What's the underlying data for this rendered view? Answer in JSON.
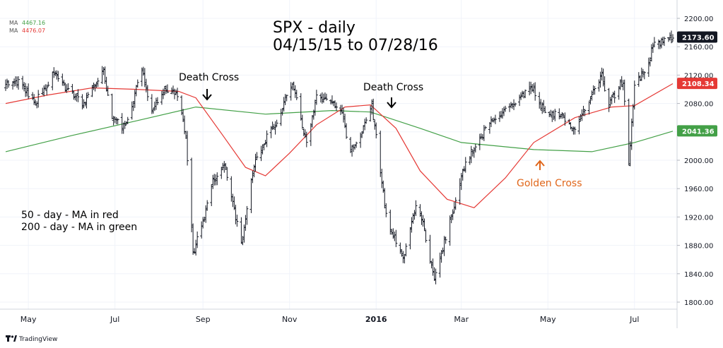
{
  "chart_data": {
    "type": "line",
    "title_line1": "SPX - daily",
    "title_line2": "04/15/15 to 07/28/16",
    "legend_items": [
      {
        "label": "MA",
        "value": "4467.16",
        "color": "#43a047"
      },
      {
        "label": "MA",
        "value": "4476.07",
        "color": "#e53935"
      }
    ],
    "note_line1": "50 - day - MA in red",
    "note_line2": "200 - day - MA in green",
    "annotations": [
      {
        "text": "Death Cross",
        "arrow": "down",
        "date": "2015-08-26",
        "color": "#000000"
      },
      {
        "text": "Death Cross",
        "arrow": "down",
        "date": "2015-12-28",
        "color": "#000000"
      },
      {
        "text": "Golden Cross",
        "arrow": "up",
        "date": "2016-04-21",
        "color": "#e0661b"
      }
    ],
    "y_ticks": [
      "1800.00",
      "1840.00",
      "1880.00",
      "1920.00",
      "1960.00",
      "2000.00",
      "2040.00",
      "2080.00",
      "2120.00",
      "2160.00",
      "2200.00"
    ],
    "ylim": [
      1790,
      2210
    ],
    "x_ticks": [
      {
        "label": "May",
        "date": "2015-05-01",
        "bold": false
      },
      {
        "label": "Jul",
        "date": "2015-07-01",
        "bold": false
      },
      {
        "label": "Sep",
        "date": "2015-09-01",
        "bold": false
      },
      {
        "label": "Nov",
        "date": "2015-11-01",
        "bold": false
      },
      {
        "label": "2016",
        "date": "2016-01-01",
        "bold": true
      },
      {
        "label": "Mar",
        "date": "2016-03-01",
        "bold": false
      },
      {
        "label": "May",
        "date": "2016-05-01",
        "bold": false
      },
      {
        "label": "Jul",
        "date": "2016-07-01",
        "bold": false
      }
    ],
    "price_labels": [
      {
        "value": "2173.60",
        "bg": "#131722"
      },
      {
        "value": "2108.34",
        "bg": "#e53935"
      },
      {
        "value": "2041.36",
        "bg": "#43a047"
      }
    ],
    "price_label_levels": [
      2173.6,
      2108.34,
      2041.36
    ],
    "series": [
      {
        "name": "SPX",
        "kind": "ohlc",
        "color": "#131722",
        "points": [
          [
            "2015-04-15",
            2105
          ],
          [
            "2015-04-24",
            2112
          ],
          [
            "2015-05-06",
            2082
          ],
          [
            "2015-05-20",
            2126
          ],
          [
            "2015-05-26",
            2105
          ],
          [
            "2015-06-09",
            2080
          ],
          [
            "2015-06-23",
            2124
          ],
          [
            "2015-06-29",
            2058
          ],
          [
            "2015-07-08",
            2046
          ],
          [
            "2015-07-20",
            2128
          ],
          [
            "2015-07-27",
            2068
          ],
          [
            "2015-08-05",
            2100
          ],
          [
            "2015-08-14",
            2092
          ],
          [
            "2015-08-20",
            2035
          ],
          [
            "2015-08-25",
            1868
          ],
          [
            "2015-09-01",
            1914
          ],
          [
            "2015-09-08",
            1970
          ],
          [
            "2015-09-16",
            1995
          ],
          [
            "2015-09-28",
            1881
          ],
          [
            "2015-10-07",
            1995
          ],
          [
            "2015-10-16",
            2033
          ],
          [
            "2015-10-22",
            2052
          ],
          [
            "2015-11-03",
            2109
          ],
          [
            "2015-11-13",
            2023
          ],
          [
            "2015-11-20",
            2089
          ],
          [
            "2015-12-02",
            2079
          ],
          [
            "2015-12-08",
            2063
          ],
          [
            "2015-12-14",
            2012
          ],
          [
            "2015-12-22",
            2038
          ],
          [
            "2015-12-29",
            2078
          ],
          [
            "2016-01-08",
            1922
          ],
          [
            "2016-01-20",
            1859
          ],
          [
            "2016-01-29",
            1940
          ],
          [
            "2016-02-03",
            1912
          ],
          [
            "2016-02-11",
            1829
          ],
          [
            "2016-02-24",
            1930
          ],
          [
            "2016-03-04",
            1999
          ],
          [
            "2016-03-21",
            2051
          ],
          [
            "2016-04-01",
            2072
          ],
          [
            "2016-04-20",
            2102
          ],
          [
            "2016-04-29",
            2065
          ],
          [
            "2016-05-11",
            2064
          ],
          [
            "2016-05-19",
            2040
          ],
          [
            "2016-06-08",
            2119
          ],
          [
            "2016-06-13",
            2079
          ],
          [
            "2016-06-23",
            2113
          ],
          [
            "2016-06-27",
            2000
          ],
          [
            "2016-07-01",
            2102
          ],
          [
            "2016-07-11",
            2137
          ],
          [
            "2016-07-14",
            2163
          ],
          [
            "2016-07-28",
            2170
          ]
        ]
      },
      {
        "name": "50 - day - MA",
        "kind": "line",
        "color": "#e53935",
        "points": [
          [
            "2015-04-15",
            2080
          ],
          [
            "2015-05-15",
            2092
          ],
          [
            "2015-06-15",
            2102
          ],
          [
            "2015-07-15",
            2100
          ],
          [
            "2015-08-15",
            2097
          ],
          [
            "2015-08-27",
            2088
          ],
          [
            "2015-09-15",
            2035
          ],
          [
            "2015-10-01",
            1990
          ],
          [
            "2015-10-15",
            1978
          ],
          [
            "2015-11-01",
            2010
          ],
          [
            "2015-11-20",
            2050
          ],
          [
            "2015-12-10",
            2075
          ],
          [
            "2015-12-28",
            2078
          ],
          [
            "2016-01-15",
            2045
          ],
          [
            "2016-02-01",
            1985
          ],
          [
            "2016-02-20",
            1945
          ],
          [
            "2016-03-10",
            1933
          ],
          [
            "2016-04-01",
            1975
          ],
          [
            "2016-04-21",
            2025
          ],
          [
            "2016-05-20",
            2060
          ],
          [
            "2016-06-15",
            2075
          ],
          [
            "2016-07-01",
            2077
          ],
          [
            "2016-07-28",
            2108
          ]
        ]
      },
      {
        "name": "200 - day - MA",
        "kind": "line",
        "color": "#43a047",
        "points": [
          [
            "2015-04-15",
            2012
          ],
          [
            "2015-06-01",
            2035
          ],
          [
            "2015-07-15",
            2055
          ],
          [
            "2015-08-27",
            2075
          ],
          [
            "2015-10-15",
            2065
          ],
          [
            "2015-12-01",
            2070
          ],
          [
            "2015-12-28",
            2068
          ],
          [
            "2016-02-01",
            2045
          ],
          [
            "2016-03-01",
            2025
          ],
          [
            "2016-04-21",
            2015
          ],
          [
            "2016-06-01",
            2012
          ],
          [
            "2016-07-01",
            2025
          ],
          [
            "2016-07-28",
            2041
          ]
        ]
      }
    ],
    "watermark": "TradingView"
  }
}
